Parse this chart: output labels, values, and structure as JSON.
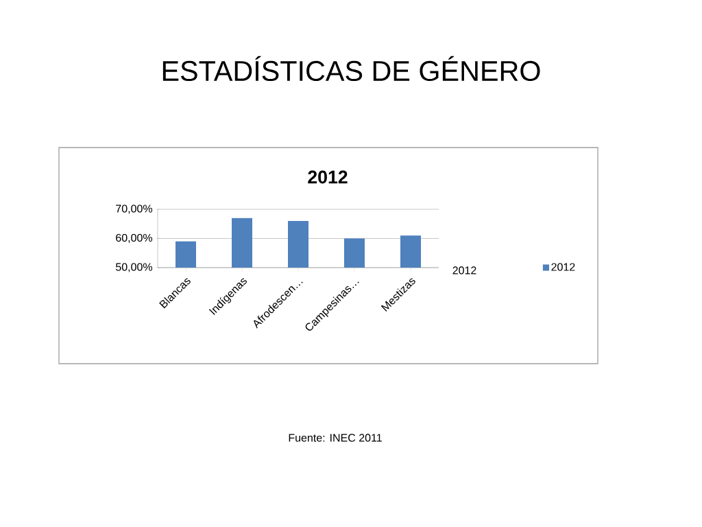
{
  "chart_data": {
    "type": "bar",
    "title": "ESTADÍSTICAS DE GÉNERO",
    "subtitle": "2012",
    "categories": [
      "Blancas",
      "Indígenas",
      "Afrodescen…",
      "Campesinas…",
      "Mestizas"
    ],
    "series": [
      {
        "name": "2012",
        "color": "#4f81bd",
        "values": [
          59,
          67,
          66,
          60,
          61
        ]
      }
    ],
    "ylim": [
      50,
      70
    ],
    "yticks": [
      {
        "value": 50,
        "label": "50,00%"
      },
      {
        "value": 60,
        "label": "60,00%"
      },
      {
        "value": 70,
        "label": "70,00%"
      }
    ],
    "grid": "y",
    "legend": "right",
    "annotations": [
      "2012",
      "Fuente: INEC 2011"
    ]
  }
}
